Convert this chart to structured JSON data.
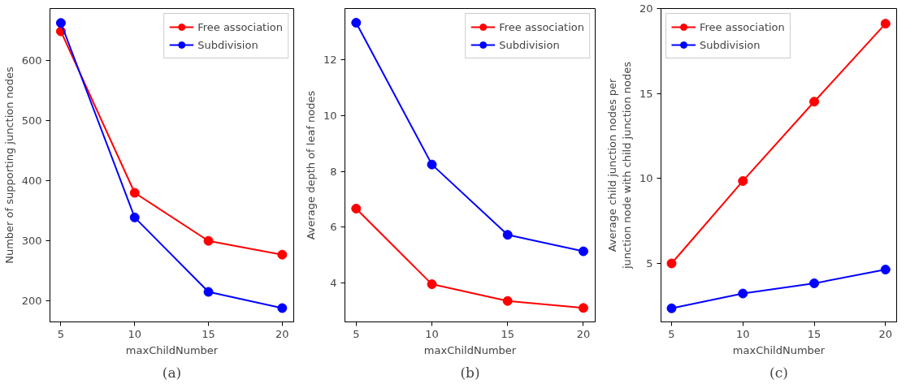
{
  "chart_data": [
    {
      "type": "line",
      "xlabel": "maxChildNumber",
      "ylabel": "Number of supporting junction nodes",
      "annotations": [
        "(a)"
      ],
      "x": [
        5,
        10,
        15,
        20
      ],
      "xlim": [
        4.26,
        20.78
      ],
      "xticks": [
        5,
        10,
        15,
        20
      ],
      "ylim": [
        165,
        687
      ],
      "yticks": [
        200,
        300,
        400,
        500,
        600
      ],
      "marker": "circle",
      "line_style": "solid",
      "legend": "top right",
      "grid": false,
      "series": [
        {
          "name": "Free association",
          "color": "#ff0000",
          "values": [
            649,
            380,
            300,
            277
          ]
        },
        {
          "name": "Subdivision",
          "color": "#0000ff",
          "values": [
            663,
            339,
            215,
            188
          ]
        }
      ]
    },
    {
      "type": "line",
      "xlabel": "maxChildNumber",
      "ylabel": "Average depth of leaf nodes",
      "annotations": [
        "(b)"
      ],
      "x": [
        5,
        10,
        15,
        20
      ],
      "xlim": [
        4.26,
        20.78
      ],
      "xticks": [
        5,
        10,
        15,
        20
      ],
      "ylim": [
        2.61,
        13.84
      ],
      "yticks": [
        4,
        6,
        8,
        10,
        12
      ],
      "marker": "circle",
      "line_style": "solid",
      "legend": "top right",
      "grid": false,
      "series": [
        {
          "name": "Free association",
          "color": "#ff0000",
          "values": [
            6.67,
            3.96,
            3.36,
            3.11
          ]
        },
        {
          "name": "Subdivision",
          "color": "#0000ff",
          "values": [
            13.33,
            8.25,
            5.73,
            5.14
          ]
        }
      ]
    },
    {
      "type": "line",
      "xlabel": "maxChildNumber",
      "ylabel": "Average child junction nodes per\njunction node with child junction nodes",
      "annotations": [
        "(c)"
      ],
      "x": [
        5,
        10,
        15,
        20
      ],
      "xlim": [
        4.26,
        20.78
      ],
      "xticks": [
        5,
        10,
        15,
        20
      ],
      "ylim": [
        1.56,
        20
      ],
      "yticks": [
        5,
        10,
        15,
        20
      ],
      "marker": "circle",
      "line_style": "solid",
      "legend": "top left",
      "grid": false,
      "series": [
        {
          "name": "Free association",
          "color": "#ff0000",
          "values": [
            5.0,
            9.85,
            14.52,
            19.11
          ]
        },
        {
          "name": "Subdivision",
          "color": "#0000ff",
          "values": [
            2.36,
            3.23,
            3.83,
            4.64
          ]
        }
      ]
    }
  ]
}
